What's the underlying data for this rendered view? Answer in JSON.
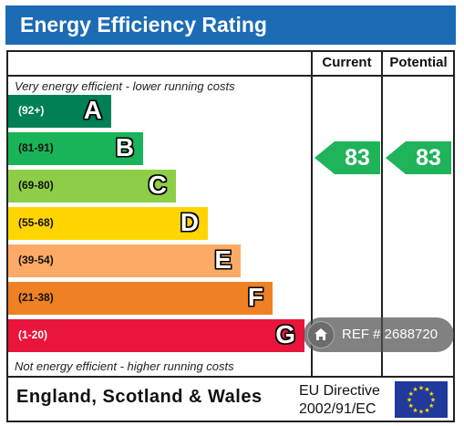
{
  "title": "Energy Efficiency Rating",
  "columns": {
    "current": "Current",
    "potential": "Potential"
  },
  "notes": {
    "top": "Very energy efficient - lower running costs",
    "bottom": "Not energy efficient - higher running costs"
  },
  "bands": [
    {
      "range": "(92+)",
      "letter": "A",
      "color": "#008054"
    },
    {
      "range": "(81-91)",
      "letter": "B",
      "color": "#19b459"
    },
    {
      "range": "(69-80)",
      "letter": "C",
      "color": "#8dce46"
    },
    {
      "range": "(55-68)",
      "letter": "D",
      "color": "#ffd500"
    },
    {
      "range": "(39-54)",
      "letter": "E",
      "color": "#fcaa65"
    },
    {
      "range": "(21-38)",
      "letter": "F",
      "color": "#ef8023"
    },
    {
      "range": "(1-20)",
      "letter": "G",
      "color": "#e9153b"
    }
  ],
  "ratings": {
    "current": "83",
    "potential": "83",
    "band": "B",
    "arrow_color": "#1fb35a"
  },
  "footer": {
    "country": "England, Scotland & Wales",
    "directive_line1": "EU Directive",
    "directive_line2": "2002/91/EC"
  },
  "watermark": {
    "icon": "home-icon",
    "text": "REF # 2688720"
  }
}
